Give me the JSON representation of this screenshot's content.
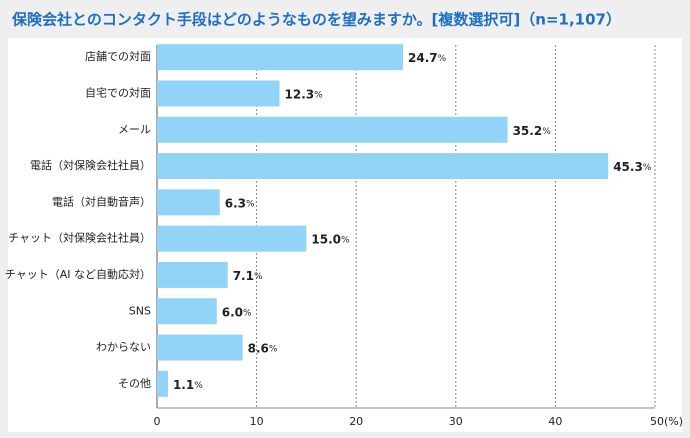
{
  "chart_data": {
    "type": "bar",
    "orientation": "horizontal",
    "title": "保険会社とのコンタクト手段はどのようなものを望みますか。[複数選択可]（n=1,107）",
    "categories": [
      "店舗での対面",
      "自宅での対面",
      "メール",
      "電話（対保険会社社員）",
      "電話（対自動音声）",
      "チャット（対保険会社社員）",
      "チャット（AI など自動応対）",
      "SNS",
      "わからない",
      "その他"
    ],
    "values": [
      24.7,
      12.3,
      35.2,
      45.3,
      6.3,
      15.0,
      7.1,
      6.0,
      8.6,
      1.1
    ],
    "value_labels": [
      "24.7%",
      "12.3%",
      "35.2%",
      "45.3%",
      "6.3%",
      "15.0%",
      "7.1%",
      "6.0%",
      "8.6%",
      "1.1%"
    ],
    "color": "#92d4f7",
    "xlim": [
      0,
      50
    ],
    "xticks": [
      0,
      10,
      20,
      30,
      40,
      {
        "value": 50,
        "label": "50(%)"
      }
    ],
    "grid": true
  }
}
